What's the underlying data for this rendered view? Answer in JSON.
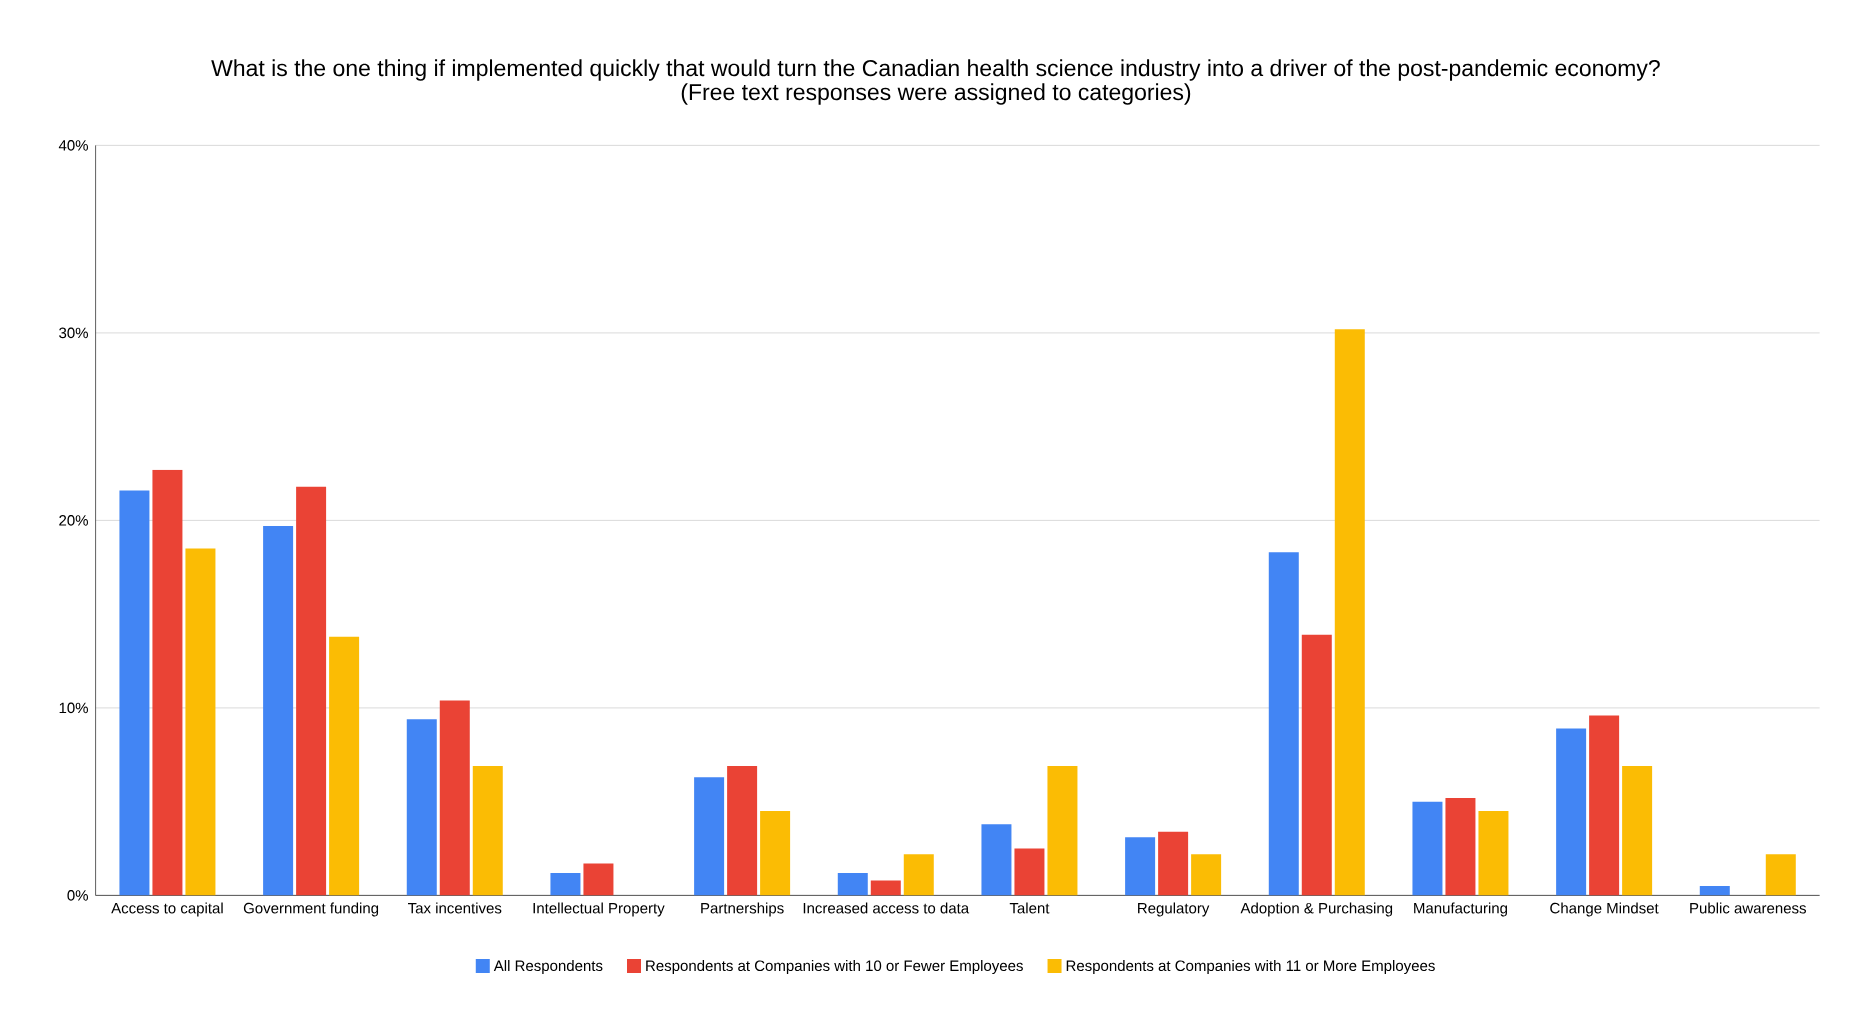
{
  "chart_data": {
    "type": "bar",
    "title": "What is the one thing if implemented quickly that would turn the Canadian health science industry into a driver of the post-pandemic economy?",
    "subtitle": "(Free text responses were assigned to categories)",
    "categories": [
      "Access to capital",
      "Government funding",
      "Tax incentives",
      "Intellectual Property",
      "Partnerships",
      "Increased access to data",
      "Talent",
      "Regulatory",
      "Adoption & Purchasing",
      "Manufacturing",
      "Change Mindset",
      "Public awareness"
    ],
    "series": [
      {
        "name": "All Respondents",
        "color": "#4285f4",
        "values": [
          21.6,
          19.7,
          9.4,
          1.2,
          6.3,
          1.2,
          3.8,
          3.1,
          18.3,
          5.0,
          8.9,
          0.5
        ]
      },
      {
        "name": "Respondents at Companies with 10 or Fewer Employees",
        "color": "#ea4335",
        "values": [
          22.7,
          21.8,
          10.4,
          1.7,
          6.9,
          0.8,
          2.5,
          3.4,
          13.9,
          5.2,
          9.6,
          0
        ]
      },
      {
        "name": "Respondents at Companies with 11 or More Employees",
        "color": "#fbbc04",
        "values": [
          18.5,
          13.8,
          6.9,
          0,
          4.5,
          2.2,
          6.9,
          2.2,
          30.2,
          4.5,
          6.9,
          2.2
        ]
      }
    ],
    "ylim": [
      0,
      40
    ],
    "yticks": [
      {
        "value": 0,
        "label": "0%"
      },
      {
        "value": 10,
        "label": "10%"
      },
      {
        "value": 20,
        "label": "20%"
      },
      {
        "value": 30,
        "label": "30%"
      },
      {
        "value": 40,
        "label": "40%"
      }
    ],
    "grid": "y",
    "legend": "bottom"
  }
}
